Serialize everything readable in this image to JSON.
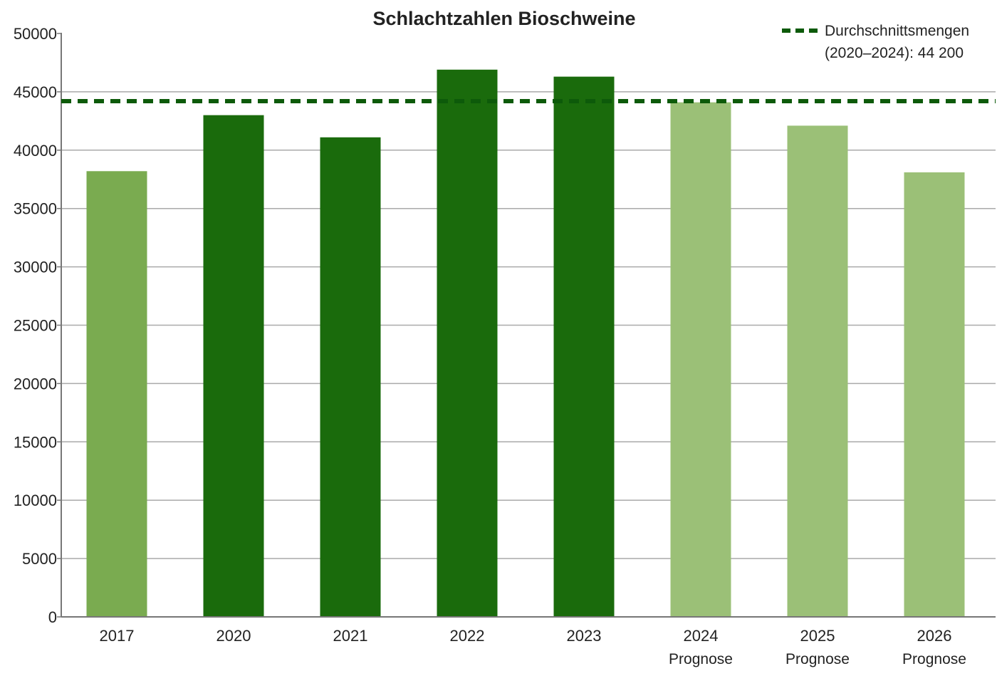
{
  "chart_data": {
    "type": "bar",
    "title": "Schlachtzahlen Bioschweine",
    "xlabel": "",
    "ylabel": "",
    "ylim": [
      0,
      50000
    ],
    "yticks": [
      0,
      5000,
      10000,
      15000,
      20000,
      25000,
      30000,
      35000,
      40000,
      45000,
      50000
    ],
    "ytick_labels": [
      "0",
      "5000",
      "10000",
      "15000",
      "20000",
      "25000",
      "30000",
      "35000",
      "40000",
      "45000",
      "50000"
    ],
    "grid": true,
    "categories": [
      "2017",
      "2020",
      "2021",
      "2022",
      "2023",
      "2024",
      "2025",
      "2026"
    ],
    "category_sublabels": [
      "",
      "",
      "",
      "",
      "",
      "Prognose",
      "Prognose",
      "Prognose"
    ],
    "values": [
      38200,
      43000,
      41100,
      46900,
      46300,
      44100,
      42100,
      38100
    ],
    "bar_colors": [
      "#7aab50",
      "#1a6b0c",
      "#1a6b0c",
      "#1a6b0c",
      "#1a6b0c",
      "#9bc077",
      "#9bc077",
      "#9bc077"
    ],
    "reference_line": {
      "value": 44200,
      "label_line1": "Durchschnittsmengen",
      "label_line2": "(2020–2024): 44 200",
      "color": "#0d5a0a",
      "style": "dashed"
    },
    "legend_position": "top-right"
  }
}
